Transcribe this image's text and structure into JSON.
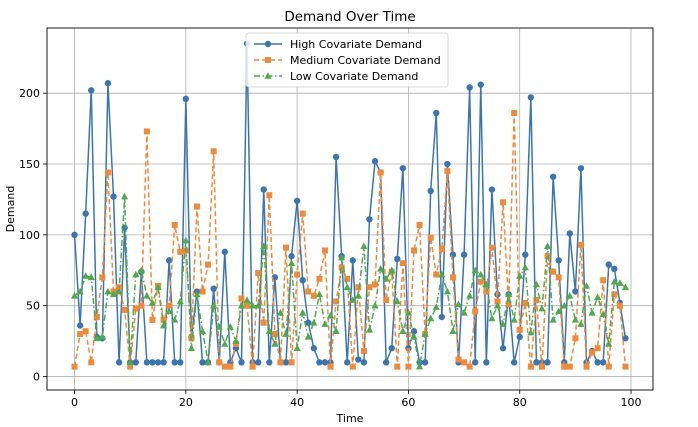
{
  "chart_data": {
    "type": "line",
    "title": "Demand Over Time",
    "xlabel": "Time",
    "ylabel": "Demand",
    "xlim": [
      -4.95,
      103.95
    ],
    "ylim": [
      -9.5,
      246
    ],
    "xticks": [
      0,
      20,
      40,
      60,
      80,
      100
    ],
    "yticks": [
      0,
      50,
      100,
      150,
      200
    ],
    "grid": true,
    "legend_position": "top-center",
    "series": [
      {
        "name": "High Covariate Demand",
        "color": "#3a75b0",
        "marker": "circle",
        "linestyle": "solid",
        "values": [
          100,
          36,
          115,
          202,
          28,
          27,
          207,
          127,
          10,
          105,
          10,
          10,
          74,
          10,
          10,
          10,
          10,
          82,
          10,
          10,
          196,
          28,
          60,
          10,
          10,
          62,
          10,
          88,
          10,
          20,
          10,
          235,
          10,
          10,
          132,
          10,
          70,
          10,
          10,
          85,
          124,
          68,
          38,
          20,
          10,
          10,
          10,
          155,
          85,
          10,
          82,
          12,
          10,
          111,
          152,
          144,
          10,
          20,
          83,
          147,
          20,
          32,
          10,
          10,
          131,
          186,
          42,
          150,
          86,
          10,
          86,
          204,
          10,
          206,
          10,
          132,
          58,
          20,
          58,
          10,
          28,
          86,
          197,
          10,
          10,
          10,
          141,
          82,
          10,
          101,
          60,
          147,
          10,
          18,
          10,
          10,
          79,
          76,
          52,
          27
        ]
      },
      {
        "name": "Medium Covariate Demand",
        "color": "#ef8a3b",
        "marker": "square",
        "linestyle": "dashed",
        "values": [
          7,
          30,
          32,
          10,
          42,
          70,
          144,
          60,
          63,
          47,
          7,
          48,
          50,
          173,
          40,
          64,
          40,
          50,
          107,
          88,
          89,
          27,
          120,
          60,
          79,
          159,
          10,
          7,
          7,
          23,
          55,
          50,
          7,
          73,
          38,
          128,
          30,
          10,
          91,
          10,
          72,
          115,
          60,
          57,
          69,
          89,
          7,
          53,
          77,
          69,
          7,
          63,
          18,
          63,
          65,
          144,
          54,
          74,
          7,
          80,
          7,
          89,
          107,
          30,
          98,
          72,
          90,
          145,
          70,
          12,
          10,
          7,
          46,
          67,
          60,
          91,
          53,
          123,
          51,
          186,
          33,
          52,
          7,
          54,
          7,
          85,
          74,
          70,
          7,
          7,
          27,
          93,
          7,
          17,
          20,
          68,
          7,
          58,
          50,
          7
        ]
      },
      {
        "name": "Low Covariate Demand",
        "color": "#52a84c",
        "marker": "triangle",
        "linestyle": "dashdot",
        "values": [
          57,
          60,
          71,
          70,
          27,
          28,
          60,
          58,
          60,
          127,
          10,
          72,
          75,
          57,
          52,
          63,
          36,
          46,
          40,
          53,
          96,
          20,
          58,
          32,
          10,
          50,
          35,
          23,
          35,
          25,
          50,
          54,
          50,
          50,
          92,
          32,
          23,
          45,
          30,
          80,
          20,
          45,
          28,
          38,
          58,
          37,
          43,
          32,
          84,
          63,
          54,
          57,
          92,
          33,
          50,
          76,
          69,
          75,
          53,
          32,
          45,
          28,
          7,
          30,
          41,
          49,
          72,
          60,
          32,
          51,
          45,
          57,
          75,
          72,
          65,
          41,
          50,
          37,
          58,
          40,
          71,
          77,
          31,
          65,
          48,
          92,
          40,
          46,
          50,
          57,
          40,
          37,
          64,
          45,
          56,
          44,
          23,
          67,
          66,
          63
        ]
      }
    ]
  }
}
